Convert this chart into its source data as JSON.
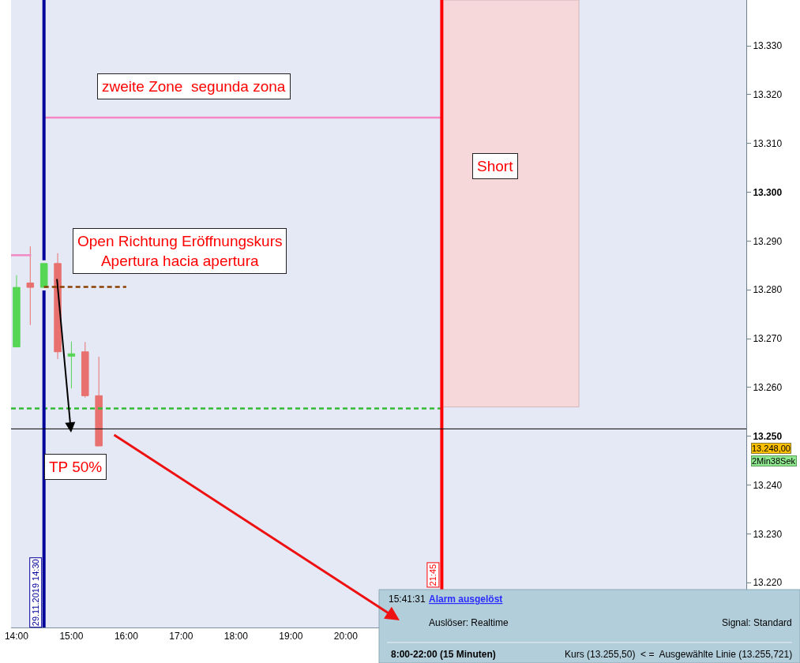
{
  "chart_data": {
    "type": "candlestick",
    "x": [
      "2019-11-29T14:00",
      "2019-11-29T14:15",
      "2019-11-29T14:30",
      "2019-11-29T14:45",
      "2019-11-29T15:00",
      "2019-11-29T15:15",
      "2019-11-29T15:30"
    ],
    "ohlc": [
      [
        13268.3,
        13283,
        13268.3,
        13280.5
      ],
      [
        13281.4,
        13288.9,
        13272.8,
        13280.5
      ],
      [
        13280.5,
        13285.4,
        13280.5,
        13285.4
      ],
      [
        13285.4,
        13287.5,
        13265.8,
        13267.3
      ],
      [
        13266.4,
        13269.4,
        13259.8,
        13266.9
      ],
      [
        13267.3,
        13269.3,
        13257.9,
        13258.3
      ],
      [
        13258.3,
        13266.3,
        13248,
        13248
      ]
    ],
    "colors": [
      "#55d655",
      "#e8716f",
      "#55d655",
      "#e8716f",
      "#55d655",
      "#e8716f",
      "#e8716f"
    ],
    "series": [
      {
        "type": "area",
        "x": [
          "2019-11-29T21:45",
          "2019-11-30T00:15"
        ],
        "values": [
          null,
          null
        ],
        "lower": [
          13256,
          13256
        ],
        "upper": [
          13339.4,
          13339.4
        ],
        "color": "#f6d7da"
      },
      {
        "type": "line",
        "x": [
          "2019-11-29T13:54",
          "2019-11-29T14:16"
        ],
        "values": [
          13287.1,
          13287.1
        ],
        "color": "#f388c4",
        "line_style": "solid"
      },
      {
        "type": "line",
        "x": [
          "2019-11-29T14:30",
          "2019-11-29T21:45"
        ],
        "values": [
          13315.3,
          13315.3
        ],
        "color": "#f388c4",
        "line_style": "solid"
      },
      {
        "type": "line",
        "x": [
          "2019-11-29T14:30",
          "2019-11-29T16:00"
        ],
        "values": [
          13280.6,
          13280.6
        ],
        "color": "#8b4000",
        "line_style": "dashed"
      },
      {
        "type": "line",
        "x": [
          "2019-11-29T13:54",
          "2019-11-29T21:45"
        ],
        "values": [
          13255.7,
          13255.7
        ],
        "color": "#33bb33",
        "line_style": "dashed"
      }
    ],
    "ref_lines": [
      {
        "axis": "x",
        "value": "2019-11-29T14:30",
        "label": "29.11.2019 14:30",
        "color": "#000099"
      },
      {
        "axis": "x",
        "value": "2019-11-29T21:45",
        "label": "21:45",
        "color": "#ff0000"
      },
      {
        "axis": "y",
        "value": 13251.5,
        "color": "#000000"
      }
    ],
    "annotations": [
      "zweite Zone  segunda zona",
      "Short",
      "Open Richtung Eröffnungskurs\nApertura hacia apertura",
      "TP 50%",
      "13.248,00",
      "2Min38Sek",
      "15:41:31",
      "Alarm ausgelöst",
      "Auslöser: Realtime",
      "Signal: Standard",
      "8:00-22:00 (15 Minuten)",
      "Kurs (13.255,50)  < =  Ausgewählte Linie (13.255,721)"
    ],
    "xlim": [
      "2019-11-29T13:54",
      "2019-11-30T03:18"
    ],
    "xticks": [
      {
        "value": "2019-11-29T14:00",
        "label": "14:00"
      },
      {
        "value": "2019-11-29T15:00",
        "label": "15:00"
      },
      {
        "value": "2019-11-29T16:00",
        "label": "16:00"
      },
      {
        "value": "2019-11-29T17:00",
        "label": "17:00"
      },
      {
        "value": "2019-11-29T18:00",
        "label": "18:00"
      },
      {
        "value": "2019-11-29T19:00",
        "label": "19:00"
      },
      {
        "value": "2019-11-29T20:00",
        "label": "20:00"
      }
    ],
    "ylim": [
      13210.8,
      13339.4
    ],
    "yticks": [
      {
        "value": 13220,
        "label": "13.220"
      },
      {
        "value": 13230,
        "label": "13.230"
      },
      {
        "value": 13240,
        "label": "13.240"
      },
      {
        "value": 13250,
        "label": "13.250"
      },
      {
        "value": 13260,
        "label": "13.260"
      },
      {
        "value": 13270,
        "label": "13.270"
      },
      {
        "value": 13280,
        "label": "13.280"
      },
      {
        "value": 13290,
        "label": "13.290"
      },
      {
        "value": 13300,
        "label": "13.300"
      },
      {
        "value": 13310,
        "label": "13.310"
      },
      {
        "value": 13320,
        "label": "13.320"
      },
      {
        "value": 13330,
        "label": "13.330"
      }
    ]
  }
}
